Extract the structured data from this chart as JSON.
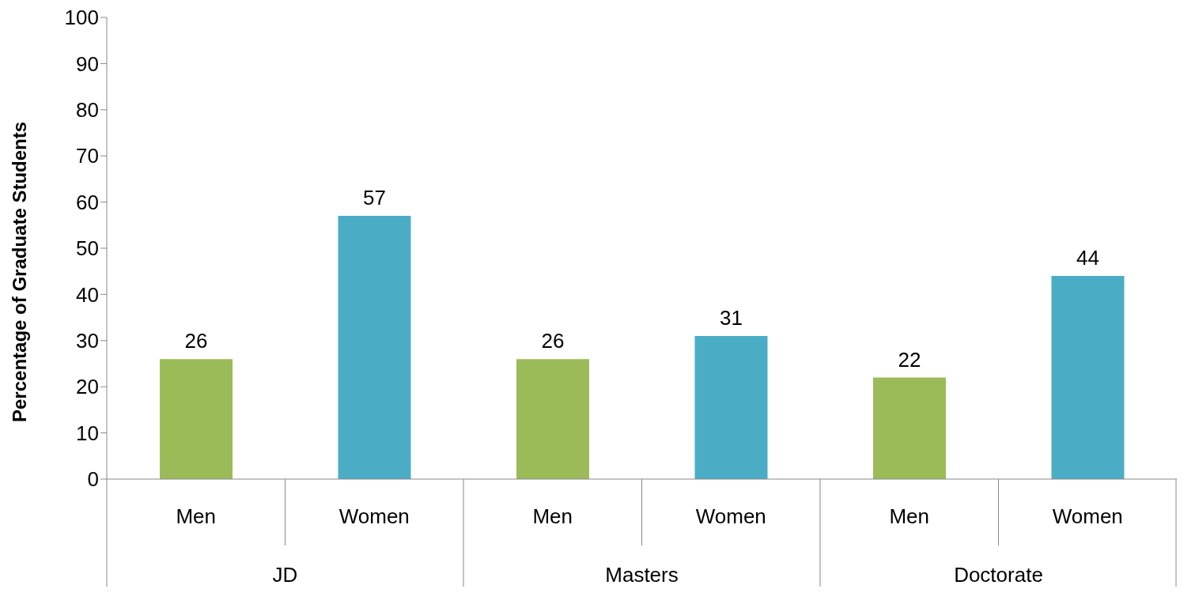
{
  "chart_data": {
    "type": "bar",
    "ylabel": "Percentage of Graduate Students",
    "categories": [
      "Men",
      "Women",
      "Men",
      "Women",
      "Men",
      "Women"
    ],
    "values": [
      26,
      57,
      26,
      31,
      22,
      44
    ],
    "colors": [
      "#9bbb59",
      "#4bacc6",
      "#9bbb59",
      "#4bacc6",
      "#9bbb59",
      "#4bacc6"
    ],
    "ylim": [
      0,
      100
    ],
    "yticks": [
      0,
      10,
      20,
      30,
      40,
      50,
      60,
      70,
      80,
      90,
      100
    ],
    "data_labels": true,
    "grid": false,
    "annotations": [
      "JD",
      "Masters",
      "Doctorate"
    ]
  }
}
